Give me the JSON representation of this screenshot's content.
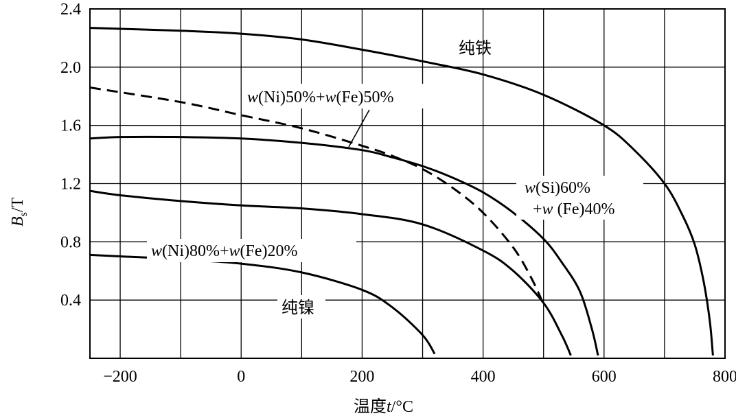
{
  "chart_data": {
    "type": "line",
    "title": "",
    "xlabel": "温度t/°C",
    "xlabel_parts": {
      "prefix": "温度",
      "var": "t",
      "unit": "/°C"
    },
    "ylabel": "Bs/T",
    "ylabel_parts": {
      "var": "B",
      "sub": "s",
      "unit": "/T"
    },
    "xlim": [
      -250,
      800
    ],
    "ylim": [
      0,
      2.4
    ],
    "grid": true,
    "x_ticks": [
      -200,
      0,
      200,
      400,
      600,
      800
    ],
    "x_tick_labels": [
      "−200",
      "0",
      "200",
      "400",
      "600",
      "800"
    ],
    "x_gridlines": [
      -200,
      -100,
      0,
      100,
      200,
      300,
      400,
      500,
      600,
      700,
      800
    ],
    "y_ticks": [
      0.4,
      0.8,
      1.2,
      1.6,
      2.0,
      2.4
    ],
    "y_tick_labels": [
      "0.4",
      "0.8",
      "1.2",
      "1.6",
      "2.0",
      "2.4"
    ],
    "series": [
      {
        "name": "纯铁",
        "style": "solid",
        "points": [
          [
            -250,
            2.27
          ],
          [
            -100,
            2.25
          ],
          [
            0,
            2.23
          ],
          [
            100,
            2.19
          ],
          [
            200,
            2.12
          ],
          [
            300,
            2.04
          ],
          [
            400,
            1.95
          ],
          [
            500,
            1.81
          ],
          [
            600,
            1.6
          ],
          [
            650,
            1.43
          ],
          [
            700,
            1.2
          ],
          [
            730,
            0.98
          ],
          [
            750,
            0.78
          ],
          [
            765,
            0.52
          ],
          [
            775,
            0.25
          ],
          [
            780,
            0.02
          ]
        ]
      },
      {
        "name_parts": [
          "w",
          "(Ni)50%+",
          "w",
          "(Fe)50%"
        ],
        "style": "dashed",
        "points": [
          [
            -250,
            1.86
          ],
          [
            -100,
            1.76
          ],
          [
            0,
            1.67
          ],
          [
            100,
            1.58
          ],
          [
            200,
            1.46
          ],
          [
            250,
            1.39
          ],
          [
            300,
            1.3
          ],
          [
            350,
            1.17
          ],
          [
            400,
            1.0
          ],
          [
            450,
            0.76
          ],
          [
            480,
            0.55
          ],
          [
            500,
            0.37
          ]
        ]
      },
      {
        "name_parts": [
          "w",
          "(Si)60%",
          "+",
          "w",
          " (Fe)40%"
        ],
        "style": "solid",
        "points": [
          [
            -250,
            1.51
          ],
          [
            -200,
            1.52
          ],
          [
            -100,
            1.52
          ],
          [
            0,
            1.51
          ],
          [
            100,
            1.48
          ],
          [
            200,
            1.43
          ],
          [
            250,
            1.38
          ],
          [
            300,
            1.32
          ],
          [
            350,
            1.24
          ],
          [
            400,
            1.14
          ],
          [
            450,
            1.0
          ],
          [
            500,
            0.82
          ],
          [
            530,
            0.66
          ],
          [
            560,
            0.46
          ],
          [
            580,
            0.2
          ],
          [
            590,
            0.02
          ]
        ]
      },
      {
        "name_parts": [
          "w",
          "(Ni)80%+",
          "w",
          "(Fe)20%"
        ],
        "style": "solid",
        "points": [
          [
            -250,
            1.15
          ],
          [
            -200,
            1.12
          ],
          [
            -100,
            1.08
          ],
          [
            0,
            1.05
          ],
          [
            100,
            1.03
          ],
          [
            200,
            0.99
          ],
          [
            300,
            0.92
          ],
          [
            400,
            0.74
          ],
          [
            450,
            0.6
          ],
          [
            500,
            0.38
          ],
          [
            530,
            0.16
          ],
          [
            545,
            0.02
          ]
        ]
      },
      {
        "name": "纯镍",
        "style": "solid",
        "points": [
          [
            -250,
            0.71
          ],
          [
            -200,
            0.7
          ],
          [
            -100,
            0.68
          ],
          [
            0,
            0.65
          ],
          [
            100,
            0.59
          ],
          [
            200,
            0.47
          ],
          [
            250,
            0.35
          ],
          [
            300,
            0.16
          ],
          [
            320,
            0.03
          ]
        ]
      }
    ]
  }
}
